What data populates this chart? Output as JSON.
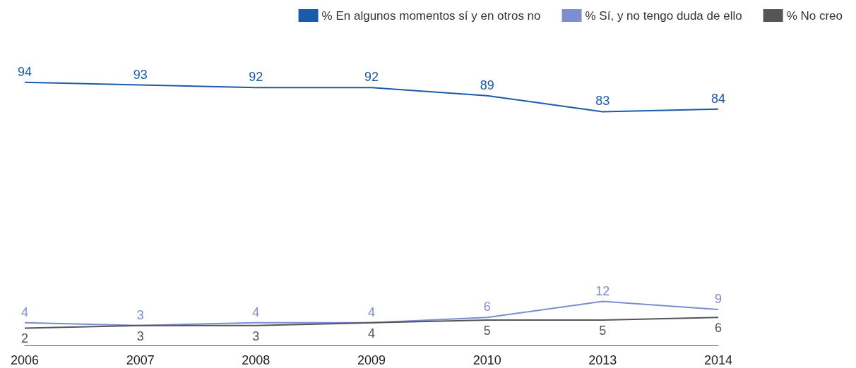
{
  "chart_data": {
    "type": "line",
    "categories": [
      "2006",
      "2007",
      "2008",
      "2009",
      "2010",
      "2013",
      "2014"
    ],
    "series": [
      {
        "name": "% En algunos momentos sí y en otros no",
        "color": "#1a5aab",
        "values": [
          94,
          93,
          92,
          92,
          89,
          83,
          84
        ]
      },
      {
        "name": "% Sí, y no tengo duda de ello",
        "color": "#7b8ed0",
        "values": [
          4,
          3,
          4,
          4,
          6,
          12,
          9
        ]
      },
      {
        "name": "% No creo",
        "color": "#555555",
        "values": [
          2,
          3,
          3,
          4,
          5,
          5,
          6
        ]
      }
    ],
    "data_labels": true,
    "legend": "top right",
    "grid": false,
    "marker": "none",
    "line_style": "solid"
  }
}
